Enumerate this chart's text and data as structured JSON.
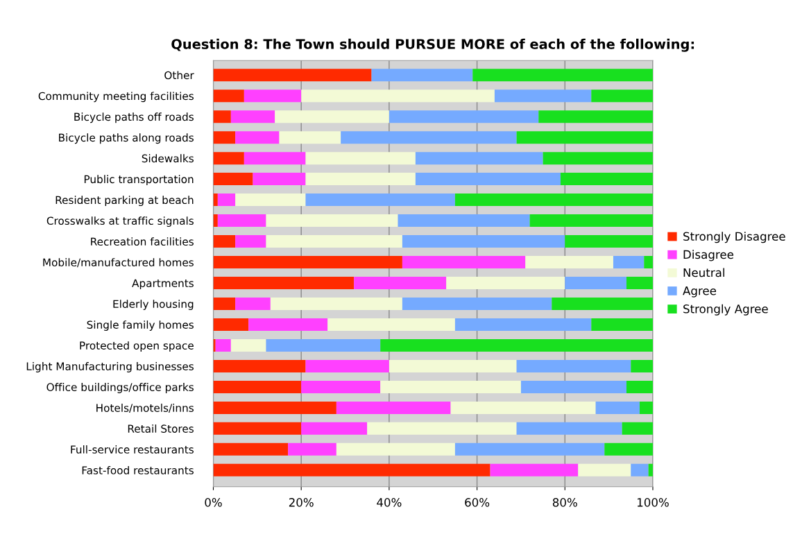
{
  "chart_data": {
    "type": "bar",
    "orientation": "horizontal",
    "stacked": true,
    "title": "Question 8: The Town should PURSUE MORE of each of the following:",
    "categories": [
      "Other",
      "Community meeting facilities",
      "Bicycle paths off roads",
      "Bicycle paths along roads",
      "Sidewalks",
      "Public transportation",
      "Resident parking at beach",
      "Crosswalks at traffic signals",
      "Recreation facilities",
      "Mobile/manufactured homes",
      "Apartments",
      "Elderly housing",
      "Single family homes",
      "Protected open space",
      "Light Manufacturing businesses",
      "Office buildings/office parks",
      "Hotels/motels/inns",
      "Retail Stores",
      "Full-service restaurants",
      "Fast-food restaurants"
    ],
    "series": [
      {
        "name": "Strongly Disagree",
        "color": "#ff2a00",
        "values": [
          36,
          7,
          4,
          5,
          7,
          9,
          1,
          1,
          5,
          43,
          32,
          5,
          8,
          0.5,
          21,
          20,
          28,
          20,
          17,
          63
        ]
      },
      {
        "name": "Disagree",
        "color": "#ff40ff",
        "values": [
          0,
          13,
          10,
          10,
          14,
          12,
          4,
          11,
          7,
          28,
          21,
          8,
          18,
          3.5,
          19,
          18,
          26,
          15,
          11,
          20
        ]
      },
      {
        "name": "Neutral",
        "color": "#f3fad6",
        "values": [
          0,
          44,
          26,
          14,
          25,
          25,
          16,
          30,
          31,
          20,
          27,
          30,
          29,
          8,
          29,
          32,
          33,
          34,
          27,
          12
        ]
      },
      {
        "name": "Agree",
        "color": "#75aaff",
        "values": [
          23,
          22,
          34,
          40,
          29,
          33,
          34,
          30,
          37,
          7,
          14,
          34,
          31,
          26,
          26,
          24,
          10,
          24,
          34,
          4
        ]
      },
      {
        "name": "Strongly Agree",
        "color": "#18e01f",
        "values": [
          41,
          14,
          26,
          31,
          25,
          21,
          45,
          28,
          20,
          2,
          6,
          23,
          14,
          62,
          5,
          6,
          3,
          7,
          11,
          1
        ]
      }
    ],
    "xlim": [
      0,
      100
    ],
    "xticks": [
      {
        "value": 0,
        "label": "0%"
      },
      {
        "value": 20,
        "label": "20%"
      },
      {
        "value": 40,
        "label": "40%"
      },
      {
        "value": 60,
        "label": "60%"
      },
      {
        "value": 80,
        "label": "80%"
      },
      {
        "value": 100,
        "label": "100%"
      }
    ],
    "grid": "x",
    "legend": "right"
  }
}
